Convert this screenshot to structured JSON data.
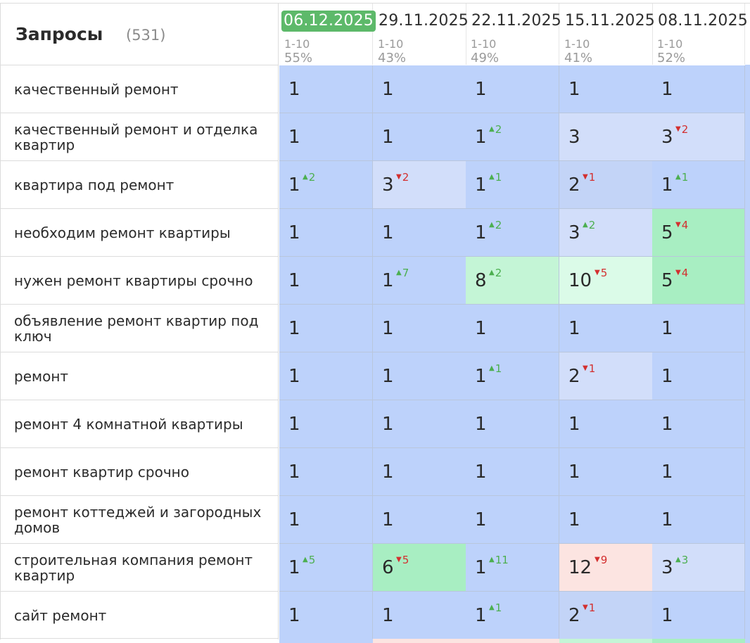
{
  "header": {
    "title": "Запросы",
    "count": "(531)",
    "dates": [
      {
        "date": "06.12.2025",
        "range": "1-10",
        "pct": "55%",
        "current": true
      },
      {
        "date": "29.11.2025",
        "range": "1-10",
        "pct": "43%",
        "current": false
      },
      {
        "date": "22.11.2025",
        "range": "1-10",
        "pct": "49%",
        "current": false
      },
      {
        "date": "15.11.2025",
        "range": "1-10",
        "pct": "41%",
        "current": false
      },
      {
        "date": "08.11.2025",
        "range": "1-10",
        "pct": "52%",
        "current": false
      }
    ]
  },
  "rows": [
    {
      "query": "качественный ремонт",
      "cells": [
        {
          "v": "1",
          "d": "",
          "dir": "",
          "color": "blue"
        },
        {
          "v": "1",
          "d": "",
          "dir": "",
          "color": "blue"
        },
        {
          "v": "1",
          "d": "",
          "dir": "",
          "color": "blue"
        },
        {
          "v": "1",
          "d": "",
          "dir": "",
          "color": "blue"
        },
        {
          "v": "1",
          "d": "",
          "dir": "",
          "color": "blue"
        }
      ]
    },
    {
      "query": "качественный ремонт и отделка квартир",
      "cells": [
        {
          "v": "1",
          "d": "",
          "dir": "",
          "color": "blue"
        },
        {
          "v": "1",
          "d": "",
          "dir": "",
          "color": "blue"
        },
        {
          "v": "1",
          "d": "2",
          "dir": "up",
          "color": "blue"
        },
        {
          "v": "3",
          "d": "",
          "dir": "",
          "color": "lightblue"
        },
        {
          "v": "3",
          "d": "2",
          "dir": "down",
          "color": "lightblue"
        }
      ]
    },
    {
      "query": "квартира под ремонт",
      "cells": [
        {
          "v": "1",
          "d": "2",
          "dir": "up",
          "color": "blue"
        },
        {
          "v": "3",
          "d": "2",
          "dir": "down",
          "color": "lightblue"
        },
        {
          "v": "1",
          "d": "1",
          "dir": "up",
          "color": "blue"
        },
        {
          "v": "2",
          "d": "1",
          "dir": "down",
          "color": "blue2"
        },
        {
          "v": "1",
          "d": "1",
          "dir": "up",
          "color": "blue"
        }
      ]
    },
    {
      "query": "необходим ремонт квартиры",
      "cells": [
        {
          "v": "1",
          "d": "",
          "dir": "",
          "color": "blue"
        },
        {
          "v": "1",
          "d": "",
          "dir": "",
          "color": "blue"
        },
        {
          "v": "1",
          "d": "2",
          "dir": "up",
          "color": "blue"
        },
        {
          "v": "3",
          "d": "2",
          "dir": "up",
          "color": "lightblue"
        },
        {
          "v": "5",
          "d": "4",
          "dir": "down",
          "color": "green"
        }
      ]
    },
    {
      "query": "нужен ремонт квартиры срочно",
      "cells": [
        {
          "v": "1",
          "d": "",
          "dir": "",
          "color": "blue"
        },
        {
          "v": "1",
          "d": "7",
          "dir": "up",
          "color": "blue"
        },
        {
          "v": "8",
          "d": "2",
          "dir": "up",
          "color": "lightgreen"
        },
        {
          "v": "10",
          "d": "5",
          "dir": "down",
          "color": "palegreen"
        },
        {
          "v": "5",
          "d": "4",
          "dir": "down",
          "color": "green"
        }
      ]
    },
    {
      "query": "объявление ремонт квартир под ключ",
      "cells": [
        {
          "v": "1",
          "d": "",
          "dir": "",
          "color": "blue"
        },
        {
          "v": "1",
          "d": "",
          "dir": "",
          "color": "blue"
        },
        {
          "v": "1",
          "d": "",
          "dir": "",
          "color": "blue"
        },
        {
          "v": "1",
          "d": "",
          "dir": "",
          "color": "blue"
        },
        {
          "v": "1",
          "d": "",
          "dir": "",
          "color": "blue"
        }
      ]
    },
    {
      "query": "ремонт",
      "cells": [
        {
          "v": "1",
          "d": "",
          "dir": "",
          "color": "blue"
        },
        {
          "v": "1",
          "d": "",
          "dir": "",
          "color": "blue"
        },
        {
          "v": "1",
          "d": "1",
          "dir": "up",
          "color": "blue"
        },
        {
          "v": "2",
          "d": "1",
          "dir": "down",
          "color": "lightblue"
        },
        {
          "v": "1",
          "d": "",
          "dir": "",
          "color": "blue"
        }
      ]
    },
    {
      "query": "ремонт 4 комнатной квартиры",
      "cells": [
        {
          "v": "1",
          "d": "",
          "dir": "",
          "color": "blue"
        },
        {
          "v": "1",
          "d": "",
          "dir": "",
          "color": "blue"
        },
        {
          "v": "1",
          "d": "",
          "dir": "",
          "color": "blue"
        },
        {
          "v": "1",
          "d": "",
          "dir": "",
          "color": "blue"
        },
        {
          "v": "1",
          "d": "",
          "dir": "",
          "color": "blue"
        }
      ]
    },
    {
      "query": "ремонт квартир срочно",
      "cells": [
        {
          "v": "1",
          "d": "",
          "dir": "",
          "color": "blue"
        },
        {
          "v": "1",
          "d": "",
          "dir": "",
          "color": "blue"
        },
        {
          "v": "1",
          "d": "",
          "dir": "",
          "color": "blue"
        },
        {
          "v": "1",
          "d": "",
          "dir": "",
          "color": "blue"
        },
        {
          "v": "1",
          "d": "",
          "dir": "",
          "color": "blue"
        }
      ]
    },
    {
      "query": "ремонт коттеджей и загородных домов",
      "cells": [
        {
          "v": "1",
          "d": "",
          "dir": "",
          "color": "blue"
        },
        {
          "v": "1",
          "d": "",
          "dir": "",
          "color": "blue"
        },
        {
          "v": "1",
          "d": "",
          "dir": "",
          "color": "blue"
        },
        {
          "v": "1",
          "d": "",
          "dir": "",
          "color": "blue"
        },
        {
          "v": "1",
          "d": "",
          "dir": "",
          "color": "blue"
        }
      ]
    },
    {
      "query": "строительная компания ремонт квартир",
      "cells": [
        {
          "v": "1",
          "d": "5",
          "dir": "up",
          "color": "blue"
        },
        {
          "v": "6",
          "d": "5",
          "dir": "down",
          "color": "green"
        },
        {
          "v": "1",
          "d": "11",
          "dir": "up",
          "color": "blue"
        },
        {
          "v": "12",
          "d": "9",
          "dir": "down",
          "color": "pink"
        },
        {
          "v": "3",
          "d": "3",
          "dir": "up",
          "color": "lightblue"
        }
      ]
    },
    {
      "query": "сайт ремонт",
      "cells": [
        {
          "v": "1",
          "d": "",
          "dir": "",
          "color": "blue"
        },
        {
          "v": "1",
          "d": "",
          "dir": "",
          "color": "blue"
        },
        {
          "v": "1",
          "d": "1",
          "dir": "up",
          "color": "blue"
        },
        {
          "v": "2",
          "d": "1",
          "dir": "down",
          "color": "blue2"
        },
        {
          "v": "1",
          "d": "",
          "dir": "",
          "color": "blue"
        }
      ]
    }
  ],
  "colors": {
    "blue": "#bdd2fb",
    "blue2": "#c3d4f7",
    "lightblue": "#d2defa",
    "green": "#a8eec2",
    "lightgreen": "#c4f5d6",
    "palegreen": "#dbfbe8",
    "pink": "#fce4e1",
    "current_date": "#5db96a",
    "up": "#4caf50",
    "down": "#d32f2f"
  },
  "icons": {
    "up": "triangle-up-icon",
    "down": "triangle-down-icon"
  }
}
